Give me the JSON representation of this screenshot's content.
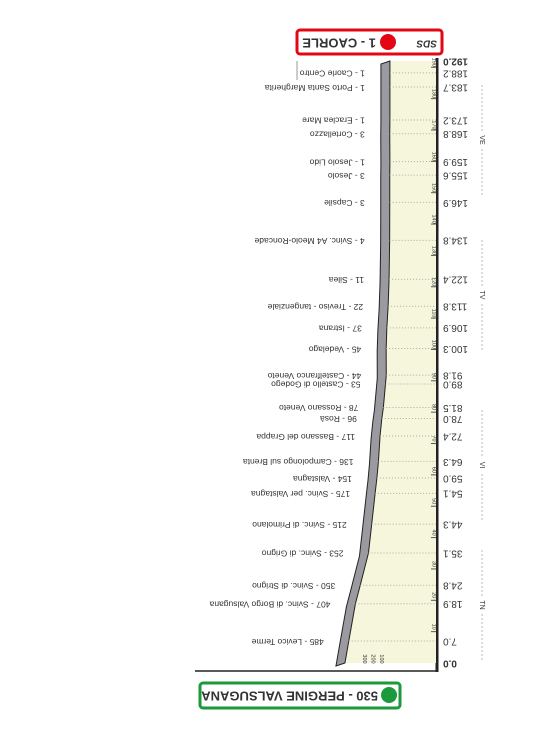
{
  "header": {
    "start": "530 - PERGINE VALSUGANA",
    "finish": "1 - CAORLE",
    "finish_tag": "SDS"
  },
  "profile": {
    "start_altitude": 530,
    "finish_altitude": 1,
    "start_km": {
      "value": 0,
      "label": "0.0"
    },
    "finish_km": {
      "value": 192,
      "label": "192.0"
    },
    "waypoints": [
      {
        "label": "485 - Levico Terme",
        "altitude": 485,
        "km": {
          "value": 7,
          "label": "7.0"
        }
      },
      {
        "label": "407 - Svinc. di Borgo Valsugana",
        "altitude": 407,
        "km": {
          "value": 18.9,
          "label": "18.9"
        }
      },
      {
        "label": "350 - Svinc. di Strigno",
        "altitude": 350,
        "km": {
          "value": 24.8,
          "label": "24.8"
        }
      },
      {
        "label": "253 - Svinc. di Grigno",
        "altitude": 253,
        "km": {
          "value": 35.1,
          "label": "35.1"
        }
      },
      {
        "label": "215 - Svinc. di Primolano",
        "altitude": 215,
        "km": {
          "value": 44.3,
          "label": "44.3"
        }
      },
      {
        "label": "175 - Svinc. per Valstagna",
        "altitude": 175,
        "km": {
          "value": 54.1,
          "label": "54.1"
        }
      },
      {
        "label": "154 - Valstagna",
        "altitude": 154,
        "km": {
          "value": 59,
          "label": "59.0"
        }
      },
      {
        "label": "136 - Campolongo sul Brenta",
        "altitude": 136,
        "km": {
          "value": 64.3,
          "label": "64.3"
        }
      },
      {
        "label": "117 - Bassano del Grappa",
        "altitude": 117,
        "km": {
          "value": 72.4,
          "label": "72.4"
        }
      },
      {
        "label": "96 - Rosà",
        "altitude": 96,
        "km": {
          "value": 78,
          "label": "78.0"
        }
      },
      {
        "label": "78 - Rossano Veneto",
        "altitude": 78,
        "km": {
          "value": 81.5,
          "label": "81.5"
        }
      },
      {
        "label": "53 - Castello di Godego",
        "altitude": 53,
        "km": {
          "value": 89,
          "label": "89.0"
        }
      },
      {
        "label": "44 - Castelfranco Veneto",
        "altitude": 44,
        "km": {
          "value": 91.8,
          "label": "91.8"
        }
      },
      {
        "label": "45 - Vedelago",
        "altitude": 45,
        "km": {
          "value": 100.3,
          "label": "100.3"
        }
      },
      {
        "label": "37 - Istrana",
        "altitude": 37,
        "km": {
          "value": 106.9,
          "label": "106.9"
        }
      },
      {
        "label": "22 - Treviso - tangenziale",
        "altitude": 22,
        "km": {
          "value": 113.8,
          "label": "113.8"
        }
      },
      {
        "label": "11 - Silea",
        "altitude": 11,
        "km": {
          "value": 122.4,
          "label": "122.4"
        }
      },
      {
        "label": "4 - Svinc. A4  Meolo-Roncade",
        "altitude": 4,
        "km": {
          "value": 134.8,
          "label": "134.8"
        }
      },
      {
        "label": "3 - Capsile",
        "altitude": 3,
        "km": {
          "value": 146.9,
          "label": "146.9"
        }
      },
      {
        "label": "3 - Jesolo",
        "altitude": 3,
        "km": {
          "value": 155.6,
          "label": "155.6"
        }
      },
      {
        "label": "1 - Jesolo Lido",
        "altitude": 1,
        "km": {
          "value": 159.9,
          "label": "159.9"
        }
      },
      {
        "label": "3 - Cortellazzo",
        "altitude": 3,
        "km": {
          "value": 168.8,
          "label": "168.8"
        }
      },
      {
        "label": "1 - Eraclea Mare",
        "altitude": 1,
        "km": {
          "value": 173.2,
          "label": "173.2"
        }
      },
      {
        "label": "1 - Porto Santa Margherita",
        "altitude": 1,
        "km": {
          "value": 183.7,
          "label": "183.7"
        }
      },
      {
        "label": "1 - Caorle Centro",
        "altitude": 1,
        "km": {
          "value": 188.2,
          "label": "188.2"
        }
      }
    ],
    "km_ticks": [
      10,
      20,
      30,
      40,
      50,
      60,
      70,
      80,
      90,
      100,
      110,
      120,
      130,
      140,
      150,
      160,
      170,
      180,
      190
    ],
    "elevation_ticks": [
      100,
      200,
      300
    ],
    "provinces": [
      "TN",
      "VI",
      "TV",
      "VE"
    ]
  }
}
